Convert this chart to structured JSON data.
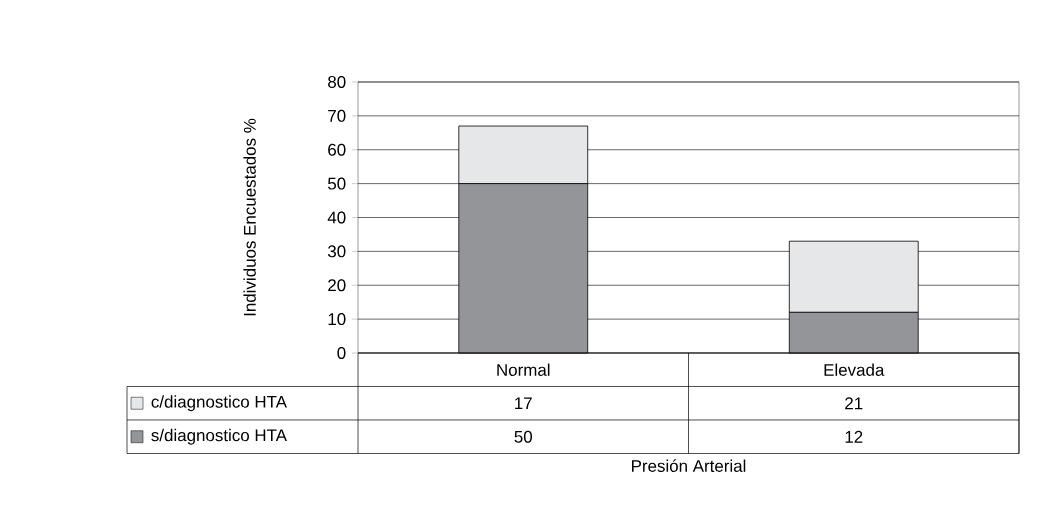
{
  "chart_data": {
    "type": "bar",
    "stacked": true,
    "ylabel": "Individuos Encuestados %",
    "xlabel": "Presión Arterial",
    "categories": [
      "Normal",
      "Elevada"
    ],
    "series": [
      {
        "name": "s/diagnostico HTA",
        "color": "#939598",
        "values": [
          50,
          12
        ]
      },
      {
        "name": "c/diagnostico HTA",
        "color": "#e6e7e8",
        "values": [
          17,
          21
        ]
      }
    ],
    "ylim": [
      0,
      80
    ],
    "yticks": [
      0,
      10,
      20,
      30,
      40,
      50,
      60,
      70,
      80
    ],
    "grid": "y",
    "legend": "bottom left",
    "data_labels": true
  }
}
